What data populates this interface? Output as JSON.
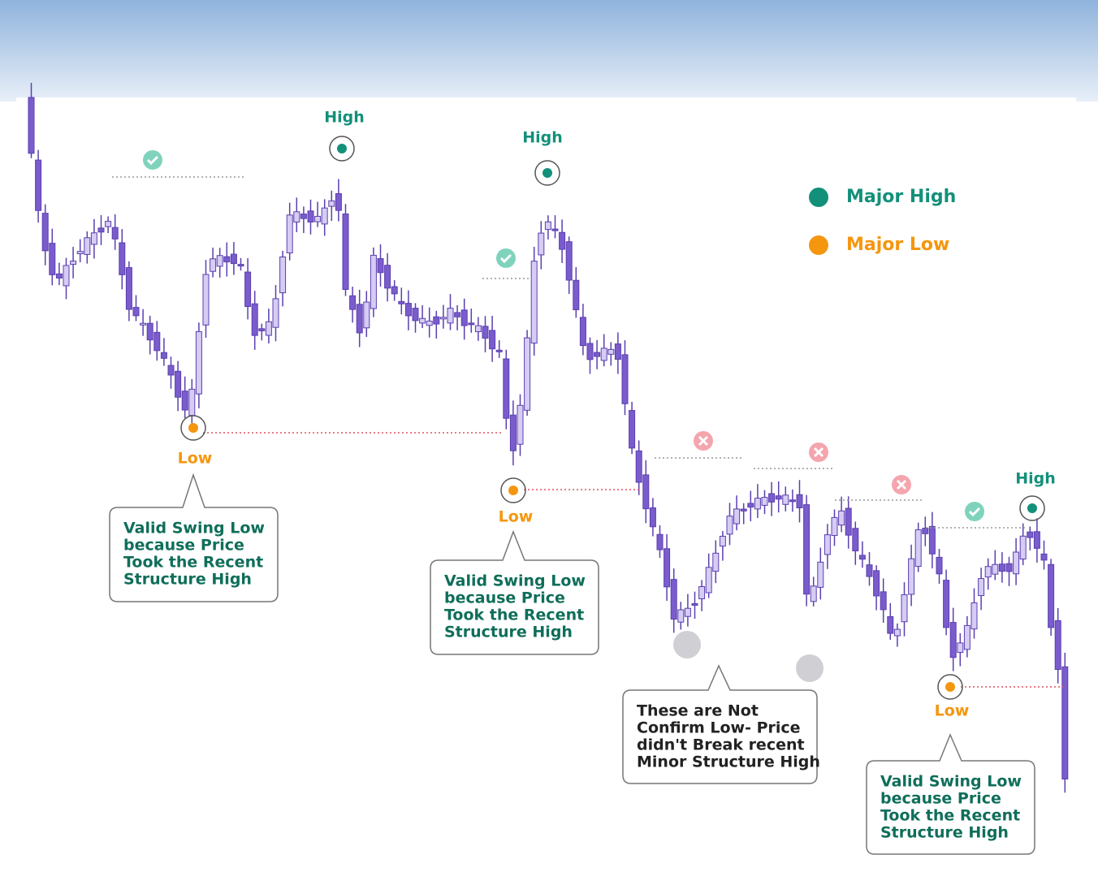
{
  "highs": [
    "High",
    "High",
    "High"
  ],
  "lows": [
    "Low",
    "Low",
    "Low"
  ],
  "legend": [
    "Major High",
    "Major Low"
  ],
  "callouts": [
    [
      "Valid Swing Low",
      "because Price",
      "Took the Recent",
      "Structure High"
    ],
    [
      "Valid Swing Low",
      "because Price",
      "Took the Recent",
      "Structure High"
    ],
    [
      "These are Not",
      "Confirm Low- Price",
      "didn't Break recent",
      "Minor Structure High"
    ],
    [
      "Valid Swing Low",
      "because Price",
      "Took the Recent",
      "Structure High"
    ]
  ]
}
